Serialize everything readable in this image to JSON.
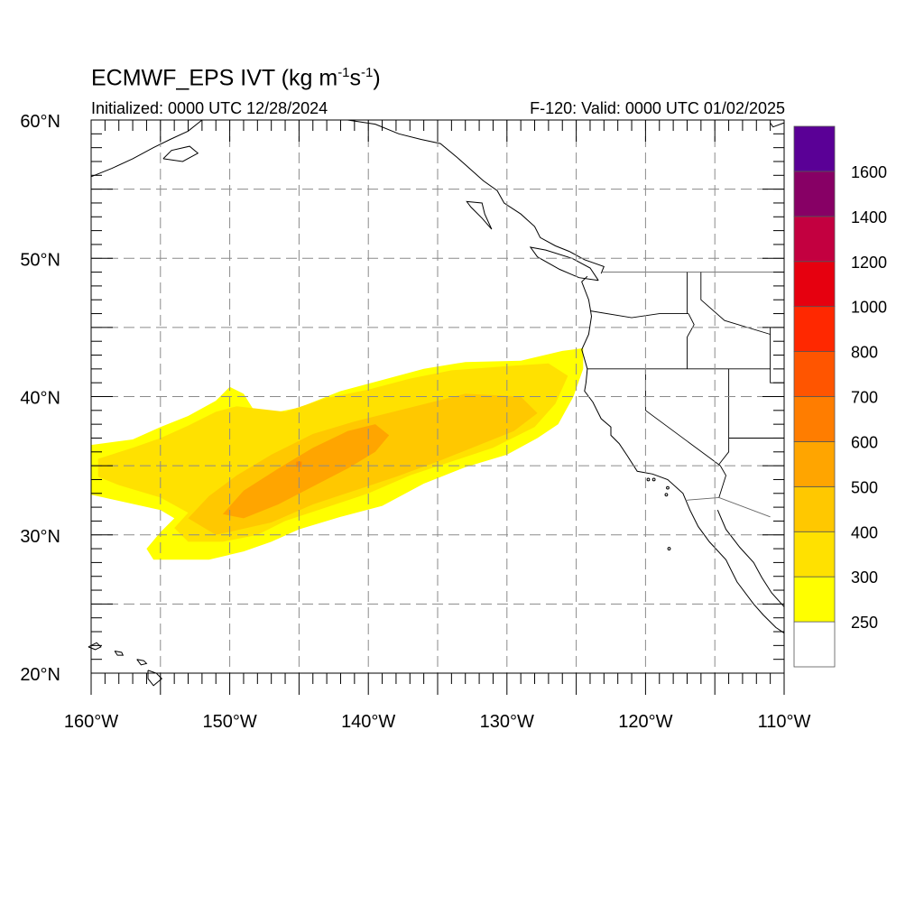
{
  "header": {
    "title_main": "ECMWF_EPS IVT (kg m",
    "title_exp1": "-1",
    "title_mid": "s",
    "title_exp2": "-1",
    "title_end": ")",
    "initialized": "Initialized: 0000 UTC 12/28/2024",
    "valid": "F-120: Valid: 0000 UTC 01/02/2025"
  },
  "axes": {
    "lat_labels": [
      "60°N",
      "50°N",
      "40°N",
      "30°N",
      "20°N"
    ],
    "lon_labels": [
      "160°W",
      "150°W",
      "140°W",
      "130°W",
      "120°W",
      "110°W"
    ],
    "lon_range": [
      -160,
      -110
    ],
    "lat_range": [
      20,
      60
    ]
  },
  "colorbar": {
    "levels": [
      {
        "label": "250",
        "color": "#ffffff"
      },
      {
        "label": "300",
        "color": "#ffff00"
      },
      {
        "label": "400",
        "color": "#ffe100"
      },
      {
        "label": "500",
        "color": "#ffc800"
      },
      {
        "label": "600",
        "color": "#ffa500"
      },
      {
        "label": "700",
        "color": "#ff7d00"
      },
      {
        "label": "800",
        "color": "#ff5500"
      },
      {
        "label": "1000",
        "color": "#ff2800"
      },
      {
        "label": "1200",
        "color": "#e6000f"
      },
      {
        "label": "1400",
        "color": "#c30040"
      },
      {
        "label": "1600",
        "color": "#870065"
      },
      {
        "label": "",
        "color": "#5a0096"
      }
    ]
  },
  "chart_data": {
    "type": "heatmap",
    "title": "ECMWF_EPS IVT (kg m-1s-1)",
    "subtitle_left": "Initialized: 0000 UTC 12/28/2024",
    "subtitle_right": "F-120: Valid: 0000 UTC 01/02/2025",
    "xlim": [
      -160,
      -110
    ],
    "ylim": [
      20,
      60
    ],
    "grid": true,
    "ivt_regions": [
      {
        "level": "250-300",
        "color": "#ffff00",
        "polygon": [
          [
            -160,
            36.5
          ],
          [
            -157,
            36.9
          ],
          [
            -155,
            37.8
          ],
          [
            -153,
            38.6
          ],
          [
            -151,
            39.7
          ],
          [
            -150,
            40.7
          ],
          [
            -149,
            40.2
          ],
          [
            -148,
            38.6
          ],
          [
            -145,
            39.2
          ],
          [
            -142,
            40.4
          ],
          [
            -139,
            41.2
          ],
          [
            -136,
            42.0
          ],
          [
            -133,
            42.5
          ],
          [
            -129,
            42.6
          ],
          [
            -126,
            43.3
          ],
          [
            -124.5,
            43.5
          ],
          [
            -124.5,
            42.0
          ],
          [
            -125.2,
            40.0
          ],
          [
            -126.3,
            38.0
          ],
          [
            -127.8,
            37.0
          ],
          [
            -130,
            35.8
          ],
          [
            -133,
            34.9
          ],
          [
            -136,
            33.7
          ],
          [
            -139,
            32.1
          ],
          [
            -142,
            31.3
          ],
          [
            -145,
            30.4
          ],
          [
            -147,
            29.5
          ],
          [
            -149,
            28.8
          ],
          [
            -151.5,
            28.2
          ],
          [
            -155.5,
            28.2
          ],
          [
            -156,
            29.0
          ],
          [
            -155,
            30.2
          ],
          [
            -154,
            31.2
          ],
          [
            -155,
            31.8
          ],
          [
            -160,
            32.9
          ]
        ]
      },
      {
        "level": "300-400",
        "color": "#ffe100",
        "polygon": [
          [
            -159.5,
            35.5
          ],
          [
            -157,
            36.3
          ],
          [
            -155,
            37.0
          ],
          [
            -153,
            37.9
          ],
          [
            -151,
            38.9
          ],
          [
            -149.5,
            39.3
          ],
          [
            -146,
            38.9
          ],
          [
            -143,
            39.9
          ],
          [
            -140,
            40.5
          ],
          [
            -137,
            41.3
          ],
          [
            -134,
            41.9
          ],
          [
            -130,
            42.2
          ],
          [
            -127,
            42.4
          ],
          [
            -125.6,
            41.5
          ],
          [
            -126.5,
            39.5
          ],
          [
            -128,
            37.8
          ],
          [
            -131,
            36.3
          ],
          [
            -134,
            35.3
          ],
          [
            -137,
            34.3
          ],
          [
            -140,
            33.0
          ],
          [
            -143,
            32.0
          ],
          [
            -146,
            31.0
          ],
          [
            -148,
            30.0
          ],
          [
            -150.5,
            29.5
          ],
          [
            -153,
            29.5
          ],
          [
            -154,
            30.5
          ],
          [
            -153,
            31.6
          ],
          [
            -155,
            32.7
          ],
          [
            -158,
            33.6
          ],
          [
            -159.5,
            34.2
          ]
        ]
      },
      {
        "level": "400-500",
        "color": "#ffc800",
        "polygon": [
          [
            -153,
            31.2
          ],
          [
            -151.5,
            32.8
          ],
          [
            -149.5,
            34.3
          ],
          [
            -147,
            35.8
          ],
          [
            -144,
            37.3
          ],
          [
            -141,
            38.2
          ],
          [
            -137,
            39.2
          ],
          [
            -133,
            40.2
          ],
          [
            -129,
            40.0
          ],
          [
            -127.8,
            38.8
          ],
          [
            -129.5,
            37.5
          ],
          [
            -132,
            36.5
          ],
          [
            -135,
            35.3
          ],
          [
            -138,
            34.2
          ],
          [
            -141,
            33.2
          ],
          [
            -144,
            32.2
          ],
          [
            -147,
            30.9
          ],
          [
            -151,
            30.0
          ]
        ]
      },
      {
        "level": "500-600",
        "color": "#ffa500",
        "polygon": [
          [
            -150.5,
            31.5
          ],
          [
            -149,
            33.2
          ],
          [
            -146.5,
            34.8
          ],
          [
            -144,
            36.3
          ],
          [
            -141.5,
            37.5
          ],
          [
            -139.5,
            38.0
          ],
          [
            -138.5,
            37.2
          ],
          [
            -139.5,
            36.0
          ],
          [
            -141.5,
            34.8
          ],
          [
            -144,
            33.5
          ],
          [
            -146.5,
            32.2
          ],
          [
            -149,
            31.2
          ]
        ]
      }
    ]
  }
}
